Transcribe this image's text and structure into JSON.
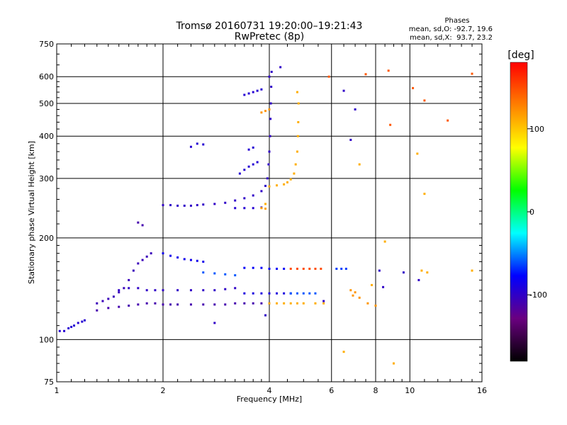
{
  "header": {
    "title_line1": "Tromsø 20160731 19:20:00–19:21:43",
    "title_line2": "RwPretec (8p)"
  },
  "phases": {
    "label": "Phases",
    "o_line": "mean, sd,O: -92.7, 19.6",
    "x_line": "mean, sd,X:  93.7, 23.2"
  },
  "colorbar": {
    "unit": "[deg]",
    "min": -180,
    "max": 180,
    "tick_values": [
      100,
      0,
      -100
    ],
    "tick_labels": [
      "100",
      "0",
      "-100"
    ],
    "colors": [
      "#000000",
      "#6a0080",
      "#0000ff",
      "#00ffff",
      "#00ff00",
      "#ffff00",
      "#ff8000",
      "#ff0000"
    ]
  },
  "chart_data": {
    "type": "scatter",
    "title": "Tromsø 20160731 19:20:00–19:21:43",
    "subtitle": "RwPretec (8p)",
    "xlabel": "Frequency [MHz]",
    "ylabel": "Stationary phase Virtual Height [km]",
    "x_scale": "log",
    "y_scale": "log",
    "xlim": [
      1,
      16
    ],
    "ylim": [
      75,
      750
    ],
    "grid": true,
    "x_ticks": [
      1,
      2,
      4,
      6,
      8,
      10,
      16
    ],
    "x_tick_labels": [
      "1",
      "2",
      "4",
      "6",
      "8",
      "10",
      "16"
    ],
    "y_ticks": [
      75,
      100,
      200,
      300,
      400,
      500,
      600,
      750
    ],
    "y_tick_labels": [
      "75",
      "100",
      "200",
      "300",
      "400",
      "500",
      "600",
      "750"
    ],
    "color_by": "phase_deg",
    "traces": [
      {
        "phase": -95,
        "points": [
          [
            1.02,
            106
          ],
          [
            1.05,
            106
          ],
          [
            1.08,
            108
          ],
          [
            1.1,
            109
          ],
          [
            1.12,
            110
          ],
          [
            1.15,
            112
          ],
          [
            1.18,
            113
          ],
          [
            1.2,
            114
          ]
        ]
      },
      {
        "phase": -105,
        "points": [
          [
            1.3,
            128
          ],
          [
            1.35,
            130
          ],
          [
            1.4,
            132
          ],
          [
            1.45,
            134
          ],
          [
            1.5,
            138
          ],
          [
            1.55,
            142
          ],
          [
            1.6,
            150
          ],
          [
            1.65,
            160
          ],
          [
            1.7,
            168
          ],
          [
            1.75,
            172
          ],
          [
            1.8,
            176
          ],
          [
            1.85,
            180
          ]
        ]
      },
      {
        "phase": -110,
        "points": [
          [
            1.3,
            122
          ],
          [
            1.4,
            124
          ],
          [
            1.5,
            125
          ],
          [
            1.6,
            126
          ],
          [
            1.7,
            127
          ],
          [
            1.8,
            128
          ],
          [
            1.9,
            128
          ],
          [
            2.0,
            127
          ],
          [
            2.1,
            127
          ],
          [
            2.2,
            127
          ],
          [
            2.4,
            127
          ],
          [
            2.6,
            127
          ],
          [
            2.8,
            127
          ],
          [
            3.0,
            127
          ],
          [
            3.2,
            128
          ],
          [
            3.4,
            128
          ],
          [
            3.6,
            128
          ],
          [
            3.8,
            128
          ],
          [
            4.0,
            128
          ]
        ]
      },
      {
        "phase": -100,
        "points": [
          [
            1.5,
            140
          ],
          [
            1.6,
            142
          ],
          [
            1.7,
            142
          ],
          [
            1.8,
            140
          ],
          [
            1.9,
            140
          ],
          [
            2.0,
            140
          ],
          [
            2.2,
            140
          ],
          [
            2.4,
            140
          ],
          [
            2.6,
            140
          ],
          [
            2.8,
            140
          ],
          [
            3.0,
            141
          ],
          [
            3.2,
            142
          ]
        ]
      },
      {
        "phase": -85,
        "points": [
          [
            2.0,
            180
          ],
          [
            2.1,
            177
          ],
          [
            2.2,
            175
          ],
          [
            2.3,
            173
          ],
          [
            2.4,
            172
          ],
          [
            2.5,
            171
          ],
          [
            2.6,
            170
          ]
        ]
      },
      {
        "phase": -100,
        "points": [
          [
            2.0,
            250
          ],
          [
            2.1,
            250
          ],
          [
            2.2,
            249
          ],
          [
            2.3,
            249
          ],
          [
            2.4,
            249
          ],
          [
            2.5,
            250
          ],
          [
            2.6,
            251
          ],
          [
            2.8,
            252
          ],
          [
            3.0,
            254
          ],
          [
            3.2,
            258
          ],
          [
            3.4,
            262
          ],
          [
            3.6,
            267
          ],
          [
            3.8,
            275
          ],
          [
            3.9,
            285
          ],
          [
            3.95,
            300
          ],
          [
            3.98,
            330
          ],
          [
            4.0,
            360
          ],
          [
            4.02,
            400
          ],
          [
            4.03,
            450
          ],
          [
            4.04,
            500
          ],
          [
            4.05,
            560
          ],
          [
            4.06,
            620
          ]
        ]
      },
      {
        "phase": -95,
        "points": [
          [
            3.2,
            245
          ],
          [
            3.4,
            245
          ],
          [
            3.6,
            245
          ],
          [
            3.8,
            246
          ]
        ]
      },
      {
        "phase": 110,
        "points": [
          [
            4.0,
            284
          ],
          [
            4.2,
            286
          ],
          [
            4.4,
            288
          ],
          [
            4.5,
            292
          ],
          [
            4.6,
            298
          ],
          [
            4.7,
            310
          ],
          [
            4.75,
            330
          ],
          [
            4.8,
            360
          ],
          [
            4.82,
            400
          ],
          [
            4.83,
            440
          ],
          [
            4.84,
            500
          ]
        ]
      },
      {
        "phase": 115,
        "points": [
          [
            3.8,
            245
          ],
          [
            3.9,
            244
          ]
        ]
      },
      {
        "phase": 120,
        "points": [
          [
            3.8,
            470
          ],
          [
            3.9,
            475
          ],
          [
            4.0,
            480
          ]
        ]
      },
      {
        "phase": -80,
        "points": [
          [
            3.4,
            163
          ],
          [
            3.6,
            163
          ],
          [
            3.8,
            163
          ],
          [
            4.0,
            162
          ],
          [
            4.2,
            162
          ],
          [
            4.4,
            162
          ]
        ]
      },
      {
        "phase": 150,
        "points": [
          [
            4.6,
            162
          ],
          [
            4.8,
            162
          ],
          [
            5.0,
            162
          ],
          [
            5.2,
            162
          ],
          [
            5.4,
            162
          ],
          [
            5.6,
            162
          ]
        ]
      },
      {
        "phase": -65,
        "points": [
          [
            6.2,
            162
          ],
          [
            6.4,
            162
          ],
          [
            6.6,
            162
          ]
        ]
      },
      {
        "phase": -90,
        "points": [
          [
            3.4,
            137
          ],
          [
            3.6,
            137
          ],
          [
            3.8,
            137
          ],
          [
            4.0,
            137
          ],
          [
            4.2,
            137
          ],
          [
            4.4,
            137
          ],
          [
            4.6,
            137
          ]
        ]
      },
      {
        "phase": -60,
        "points": [
          [
            4.6,
            137
          ],
          [
            4.8,
            137
          ],
          [
            5.0,
            137
          ],
          [
            5.2,
            137
          ],
          [
            5.4,
            137
          ]
        ]
      },
      {
        "phase": 110,
        "points": [
          [
            4.0,
            128
          ],
          [
            4.2,
            128
          ],
          [
            4.4,
            128
          ],
          [
            4.6,
            128
          ],
          [
            4.8,
            128
          ],
          [
            5.0,
            128
          ],
          [
            5.4,
            128
          ],
          [
            5.7,
            128
          ]
        ]
      },
      {
        "phase": 120,
        "points": [
          [
            6.8,
            140
          ],
          [
            7.0,
            138
          ],
          [
            6.9,
            135
          ],
          [
            7.2,
            133
          ],
          [
            7.6,
            128
          ],
          [
            8.0,
            126
          ]
        ]
      },
      {
        "phase": -110,
        "points": [
          [
            1.7,
            222
          ],
          [
            1.75,
            218
          ]
        ]
      },
      {
        "phase": -95,
        "points": [
          [
            3.3,
            310
          ],
          [
            3.4,
            318
          ],
          [
            3.5,
            325
          ],
          [
            3.6,
            330
          ],
          [
            3.7,
            335
          ],
          [
            3.5,
            365
          ],
          [
            3.6,
            370
          ],
          [
            3.4,
            530
          ],
          [
            3.5,
            535
          ],
          [
            3.6,
            540
          ],
          [
            3.7,
            545
          ],
          [
            3.8,
            550
          ],
          [
            2.5,
            380
          ],
          [
            2.6,
            378
          ],
          [
            2.4,
            372
          ]
        ]
      },
      {
        "phase": -60,
        "points": [
          [
            2.6,
            158
          ],
          [
            2.8,
            157
          ],
          [
            3.0,
            156
          ],
          [
            3.2,
            155
          ]
        ]
      },
      {
        "phase": 145,
        "points": [
          [
            5.9,
            600
          ],
          [
            7.5,
            610
          ],
          [
            8.7,
            625
          ],
          [
            10.2,
            555
          ],
          [
            11.0,
            510
          ],
          [
            15.0,
            612
          ],
          [
            12.8,
            445
          ],
          [
            8.8,
            432
          ]
        ]
      },
      {
        "phase": 110,
        "points": [
          [
            4.8,
            540
          ],
          [
            3.9,
            252
          ],
          [
            7.2,
            330
          ],
          [
            8.5,
            195
          ],
          [
            9.0,
            85
          ],
          [
            6.5,
            92
          ],
          [
            7.8,
            145
          ],
          [
            10.8,
            160
          ],
          [
            11.2,
            158
          ],
          [
            15.0,
            160
          ],
          [
            11.0,
            270
          ],
          [
            10.5,
            355
          ]
        ]
      },
      {
        "phase": -100,
        "points": [
          [
            6.5,
            545
          ],
          [
            6.8,
            390
          ],
          [
            8.2,
            160
          ],
          [
            8.4,
            143
          ],
          [
            9.6,
            158
          ],
          [
            10.6,
            150
          ],
          [
            4.3,
            640
          ],
          [
            4.0,
            600
          ],
          [
            7.0,
            480
          ],
          [
            5.7,
            130
          ],
          [
            3.9,
            118
          ],
          [
            2.8,
            112
          ]
        ]
      }
    ]
  }
}
